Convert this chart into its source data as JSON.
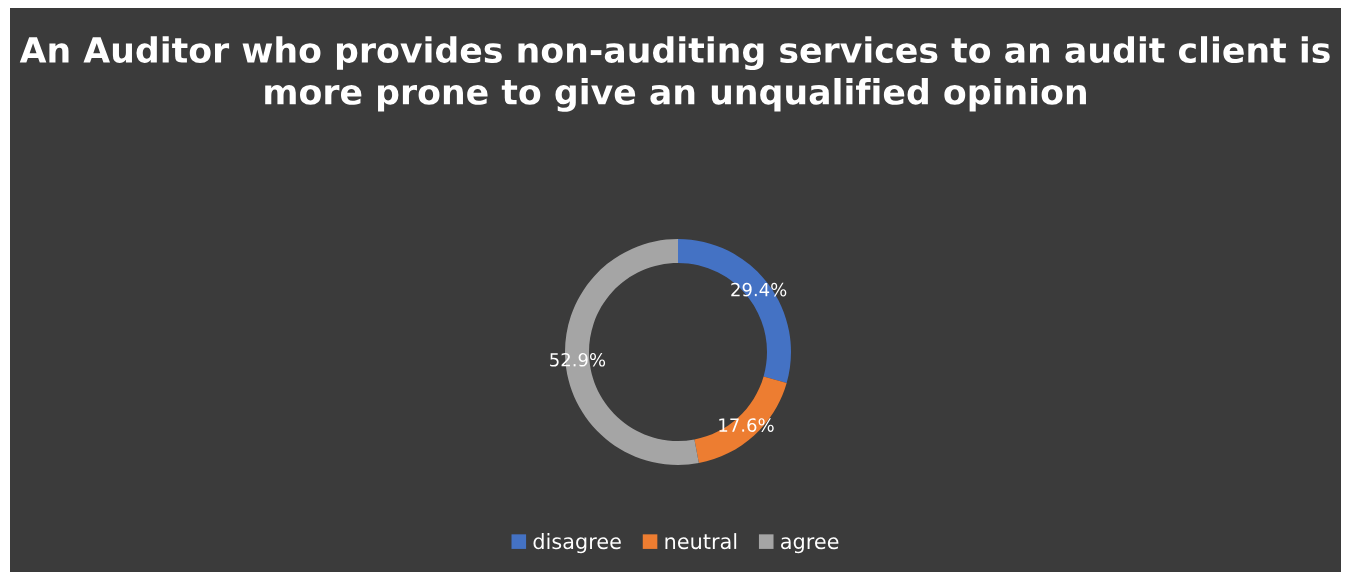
{
  "chart_data": {
    "type": "donut",
    "title": "An Auditor who provides non-auditing services to an audit client is more prone to give an unqualified opinion",
    "categories": [
      "disagree",
      "neutral",
      "agree"
    ],
    "values": [
      29.4,
      17.6,
      52.9
    ],
    "colors": [
      "#4472c4",
      "#ed7d31",
      "#a5a5a5"
    ],
    "value_labels": [
      "29.4%",
      "17.6%",
      "52.9%"
    ],
    "legend": "bottom"
  }
}
